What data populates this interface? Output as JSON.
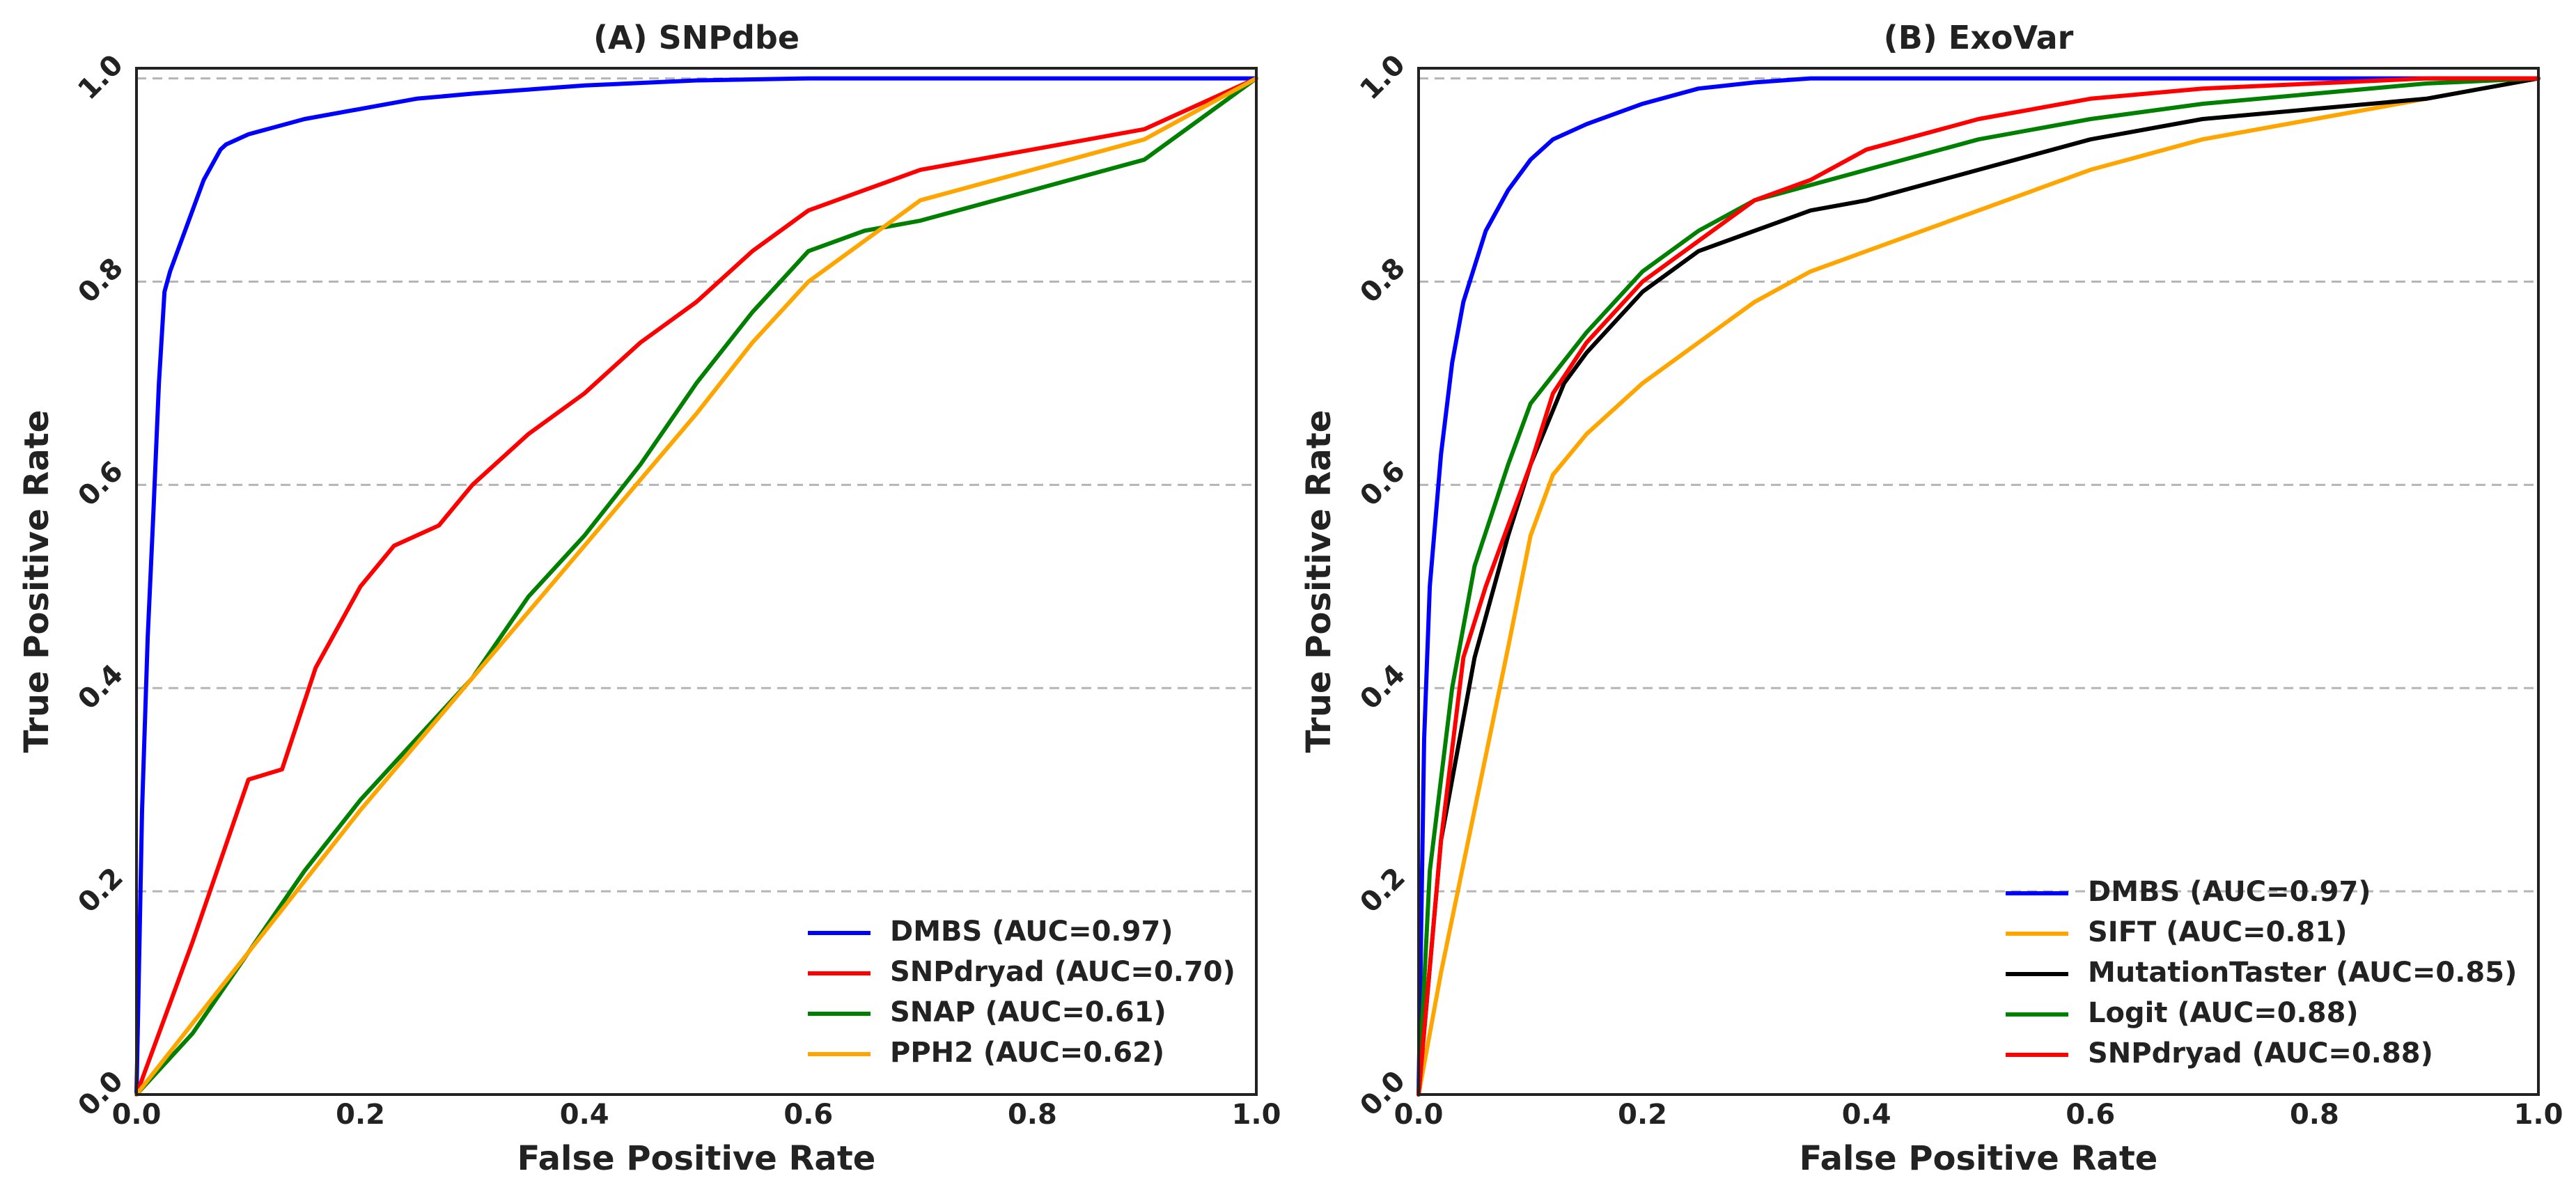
{
  "chart_data": [
    {
      "type": "line",
      "title": "(A) SNPdbe",
      "xlabel": "False Positive Rate",
      "ylabel": "True Positive Rate",
      "xlim": [
        0.0,
        1.0
      ],
      "ylim": [
        0.0,
        1.0
      ],
      "xticks": [
        "0.0",
        "0.2",
        "0.4",
        "0.6",
        "0.8",
        "1.0"
      ],
      "yticks": [
        "0.0",
        "0.2",
        "0.4",
        "0.6",
        "0.8",
        "1.0"
      ],
      "grid": "horizontal dashed",
      "legend_position": "lower-right",
      "series": [
        {
          "name": "DMBS (AUC=0.97)",
          "color": "#0000ff",
          "x": [
            0,
            0.005,
            0.01,
            0.015,
            0.02,
            0.025,
            0.03,
            0.04,
            0.05,
            0.06,
            0.07,
            0.075,
            0.08,
            0.1,
            0.15,
            0.2,
            0.25,
            0.3,
            0.4,
            0.5,
            0.6,
            1.0
          ],
          "y": [
            0,
            0.28,
            0.45,
            0.57,
            0.7,
            0.79,
            0.81,
            0.84,
            0.87,
            0.9,
            0.92,
            0.93,
            0.935,
            0.945,
            0.96,
            0.97,
            0.98,
            0.985,
            0.993,
            0.998,
            1.0,
            1.0
          ]
        },
        {
          "name": "SNPdryad (AUC=0.70)",
          "color": "#ff0000",
          "x": [
            0,
            0.05,
            0.1,
            0.13,
            0.16,
            0.2,
            0.23,
            0.27,
            0.3,
            0.35,
            0.4,
            0.45,
            0.5,
            0.55,
            0.6,
            0.65,
            0.7,
            0.8,
            0.9,
            1.0
          ],
          "y": [
            0,
            0.15,
            0.31,
            0.32,
            0.42,
            0.5,
            0.54,
            0.56,
            0.6,
            0.65,
            0.69,
            0.74,
            0.78,
            0.83,
            0.87,
            0.89,
            0.91,
            0.93,
            0.95,
            1.0
          ]
        },
        {
          "name": "SNAP (AUC=0.61)",
          "color": "#008000",
          "x": [
            0,
            0.05,
            0.1,
            0.15,
            0.2,
            0.25,
            0.3,
            0.35,
            0.4,
            0.45,
            0.5,
            0.55,
            0.6,
            0.65,
            0.7,
            0.8,
            0.9,
            1.0
          ],
          "y": [
            0,
            0.06,
            0.14,
            0.22,
            0.29,
            0.35,
            0.41,
            0.49,
            0.55,
            0.62,
            0.7,
            0.77,
            0.83,
            0.85,
            0.86,
            0.89,
            0.92,
            1.0
          ]
        },
        {
          "name": "PPH2 (AUC=0.62)",
          "color": "#ffa500",
          "x": [
            0,
            0.1,
            0.2,
            0.3,
            0.4,
            0.5,
            0.55,
            0.6,
            0.65,
            0.7,
            0.8,
            0.9,
            1.0
          ],
          "y": [
            0,
            0.14,
            0.28,
            0.41,
            0.54,
            0.67,
            0.74,
            0.8,
            0.84,
            0.88,
            0.91,
            0.94,
            1.0
          ]
        }
      ]
    },
    {
      "type": "line",
      "title": "(B) ExoVar",
      "xlabel": "False Positive Rate",
      "ylabel": "True Positive Rate",
      "xlim": [
        0.0,
        1.0
      ],
      "ylim": [
        0.0,
        1.0
      ],
      "xticks": [
        "0.0",
        "0.2",
        "0.4",
        "0.6",
        "0.8",
        "1.0"
      ],
      "yticks": [
        "0.0",
        "0.2",
        "0.4",
        "0.6",
        "0.8",
        "1.0"
      ],
      "grid": "horizontal dashed",
      "legend_position": "lower-right",
      "series": [
        {
          "name": "DMBS (AUC=0.97)",
          "color": "#0000ff",
          "x": [
            0,
            0.005,
            0.01,
            0.02,
            0.03,
            0.04,
            0.06,
            0.08,
            0.1,
            0.12,
            0.15,
            0.2,
            0.25,
            0.3,
            0.35,
            0.5,
            1.0
          ],
          "y": [
            0,
            0.35,
            0.5,
            0.63,
            0.72,
            0.78,
            0.85,
            0.89,
            0.92,
            0.94,
            0.955,
            0.975,
            0.99,
            0.996,
            1.0,
            1.0,
            1.0
          ]
        },
        {
          "name": "SIFT (AUC=0.81)",
          "color": "#ffa500",
          "x": [
            0,
            0.02,
            0.05,
            0.08,
            0.1,
            0.12,
            0.15,
            0.2,
            0.25,
            0.3,
            0.35,
            0.4,
            0.5,
            0.6,
            0.7,
            0.8,
            0.9,
            1.0
          ],
          "y": [
            0,
            0.12,
            0.28,
            0.44,
            0.55,
            0.61,
            0.65,
            0.7,
            0.74,
            0.78,
            0.81,
            0.83,
            0.87,
            0.91,
            0.94,
            0.96,
            0.98,
            1.0
          ]
        },
        {
          "name": "MutationTaster (AUC=0.85)",
          "color": "#000000",
          "x": [
            0,
            0.02,
            0.05,
            0.08,
            0.1,
            0.13,
            0.15,
            0.2,
            0.25,
            0.3,
            0.35,
            0.4,
            0.5,
            0.6,
            0.7,
            0.8,
            0.9,
            1.0
          ],
          "y": [
            0,
            0.25,
            0.43,
            0.55,
            0.62,
            0.7,
            0.73,
            0.79,
            0.83,
            0.85,
            0.87,
            0.88,
            0.91,
            0.94,
            0.96,
            0.97,
            0.98,
            1.0
          ]
        },
        {
          "name": "Logit (AUC=0.88)",
          "color": "#008000",
          "x": [
            0,
            0.01,
            0.03,
            0.05,
            0.08,
            0.1,
            0.15,
            0.2,
            0.25,
            0.3,
            0.4,
            0.5,
            0.6,
            0.7,
            0.8,
            0.9,
            1.0
          ],
          "y": [
            0,
            0.22,
            0.4,
            0.52,
            0.62,
            0.68,
            0.75,
            0.81,
            0.85,
            0.88,
            0.91,
            0.94,
            0.96,
            0.975,
            0.985,
            0.995,
            1.0
          ]
        },
        {
          "name": "SNPdryad (AUC=0.88)",
          "color": "#ff0000",
          "x": [
            0,
            0.02,
            0.04,
            0.06,
            0.08,
            0.1,
            0.12,
            0.15,
            0.2,
            0.25,
            0.3,
            0.35,
            0.4,
            0.5,
            0.6,
            0.7,
            0.8,
            0.9,
            1.0
          ],
          "y": [
            0,
            0.25,
            0.43,
            0.5,
            0.56,
            0.62,
            0.69,
            0.74,
            0.8,
            0.84,
            0.88,
            0.9,
            0.93,
            0.96,
            0.98,
            0.99,
            0.995,
            1.0,
            1.0
          ]
        }
      ]
    }
  ]
}
